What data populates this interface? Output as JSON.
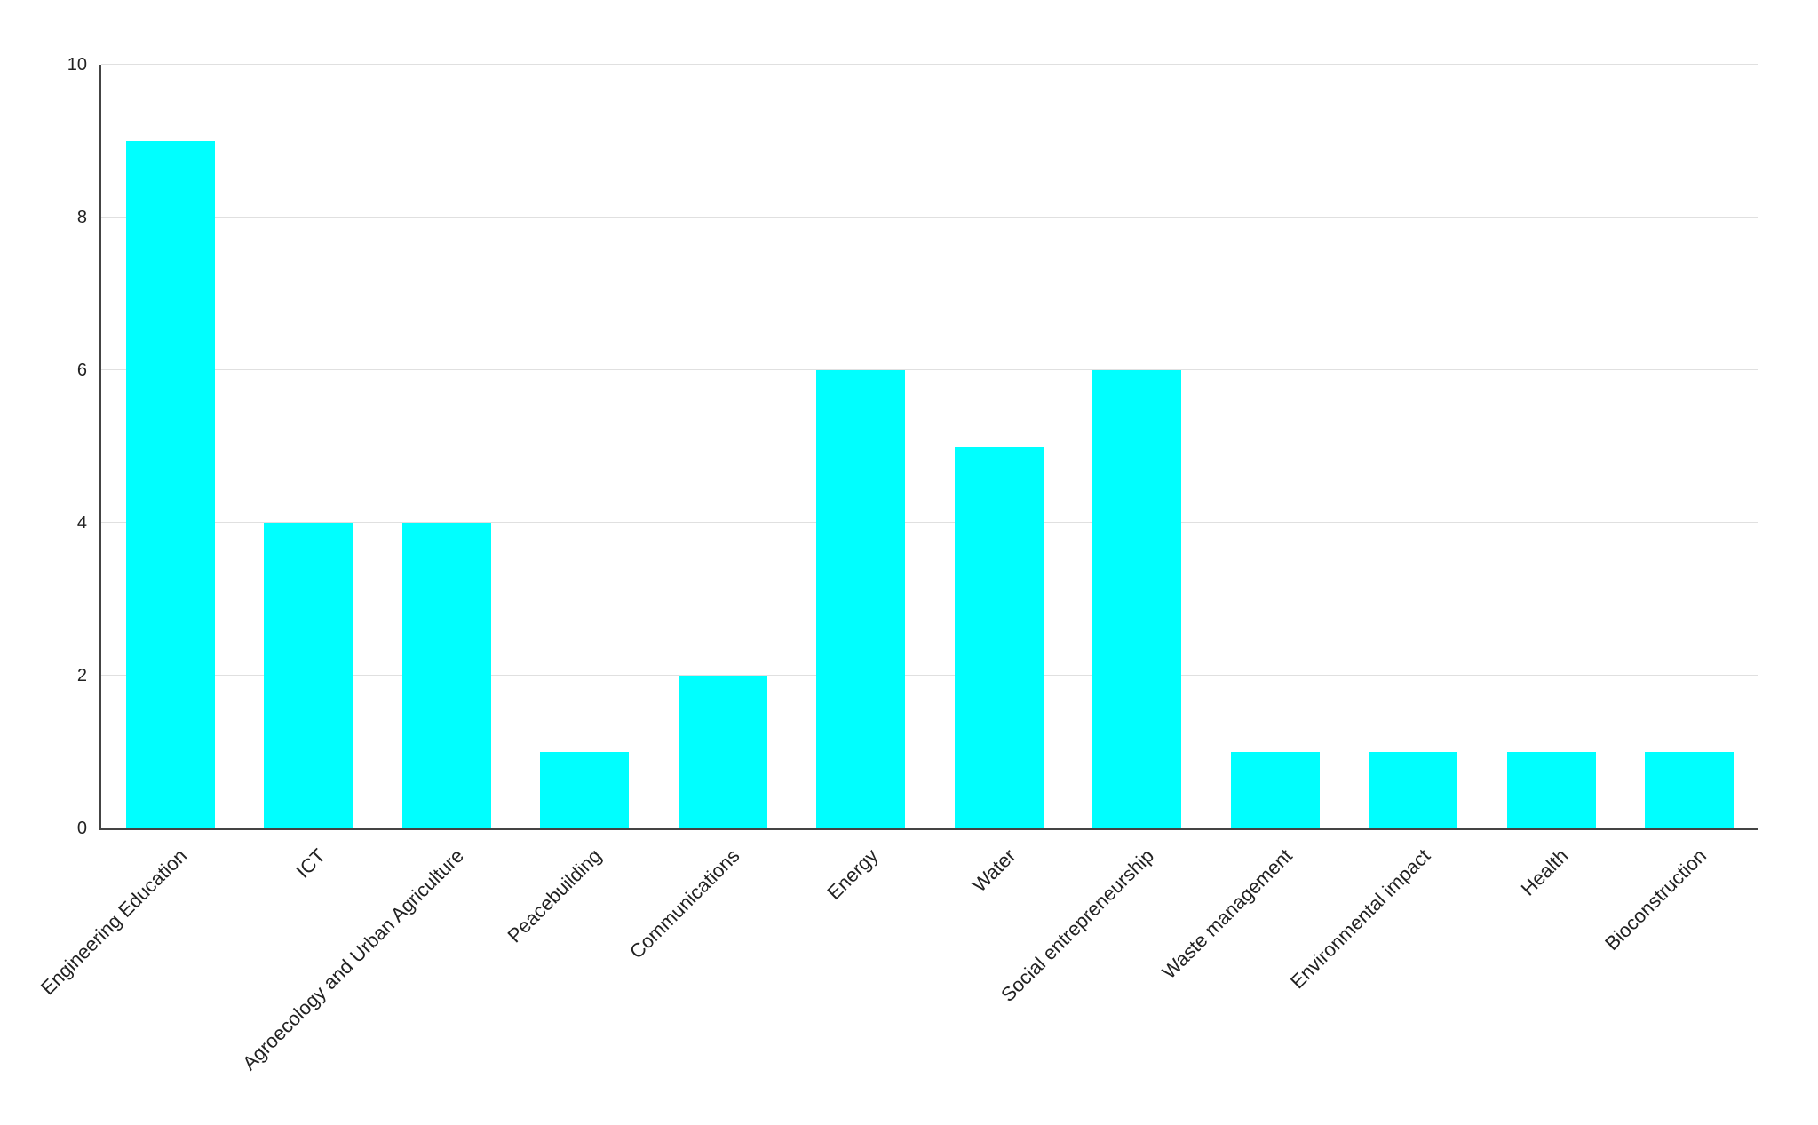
{
  "chart_data": {
    "type": "bar",
    "title": "",
    "xlabel": "",
    "ylabel": "",
    "categories": [
      "Engineering Education",
      "ICT",
      "Agroecology and Urban Agriculture",
      "Peacebuilding",
      "Communications",
      "Energy",
      "Water",
      "Social entrepreneurship",
      "Waste management",
      "Environmental impact",
      "Health",
      "Bioconstruction"
    ],
    "values": [
      9,
      4,
      4,
      1,
      2,
      6,
      5,
      6,
      1,
      1,
      1,
      1
    ],
    "ylim": [
      0,
      10
    ],
    "yticks": [
      0,
      2,
      4,
      6,
      8,
      10
    ],
    "grid": true,
    "legend": false,
    "label_rotation_deg": 45,
    "colors": {
      "bar": "#00ffff",
      "axis": "#444444",
      "gridline": "#e0e0e0",
      "text": "#222222",
      "background": "#ffffff"
    }
  }
}
